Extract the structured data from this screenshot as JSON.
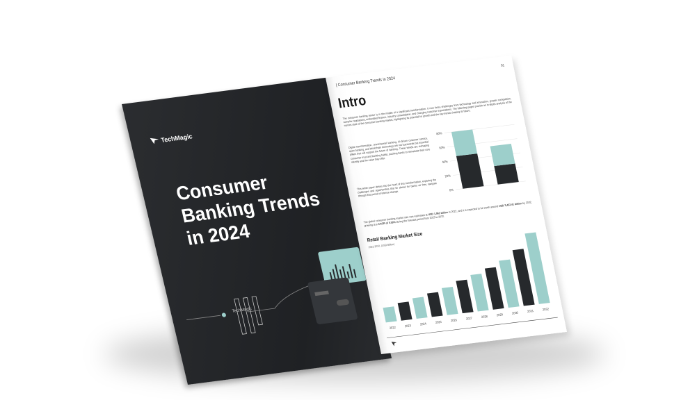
{
  "cover": {
    "brand": "TechMagic",
    "title": "Consumer Banking Trends in 2024",
    "footer_brand": "TechMagic"
  },
  "page": {
    "header": "| Consumer Banking Trends in 2024",
    "page_number": "01",
    "heading": "Intro",
    "paragraphs": [
      "The consumer banking sector is in the middle of a significant transformation. It now faces challenges from technology and innovation, greater competition, complex regulations, embedded finance, industry consolidation, and changing customer expectations. The following pages provide an in-depth analysis of the current state of the consumer banking market, highlighting its potential for growth and the key trends shaping its future.",
      "Digital transformation, omnichannel banking, AI-driven customer service, open banking, and blockchain technology are not buzzwords but essential pillars that will support the future of banking. These trends are reshaping consumer trust and banking habits, pushing banks to reevaluate their core identity and the value they offer.",
      "This white paper delves into the heart of this transformation, exploring the challenges and opportunities that lie ahead for banks as they navigate through this period of intense change."
    ],
    "market_text": [
      {
        "text": "The global consumer banking market size was estimated at ",
        "bold": false
      },
      {
        "text": "USD 1,963 billion",
        "bold": true
      },
      {
        "text": " in 2022, and it is expected to be worth around ",
        "bold": false
      },
      {
        "text": "USD 3,452.41 billion",
        "bold": true
      },
      {
        "text": " by 2032, growing at a ",
        "bold": false
      },
      {
        "text": "CAGR of 5.59%",
        "bold": true
      },
      {
        "text": " during the forecast period from 2023 to 2032.",
        "bold": false
      }
    ]
  },
  "chart_data": [
    {
      "type": "stacked-bar",
      "categories": [
        null,
        null
      ],
      "series": [
        {
          "color": "#26292c",
          "values": [
            46,
            26
          ]
        },
        {
          "color": "#9dcfcb",
          "values": [
            34,
            28
          ]
        }
      ],
      "ylim": [
        0,
        80
      ],
      "yticks": [
        {
          "value": 0,
          "label": "0%"
        },
        {
          "value": 20,
          "label": "20%"
        },
        {
          "value": 40,
          "label": "40%"
        },
        {
          "value": 60,
          "label": "60%"
        },
        {
          "value": 80,
          "label": "80%"
        }
      ]
    },
    {
      "type": "bar",
      "title": "Retail Banking Market Size",
      "subtitle": "2022-2032, (USD Billion)",
      "categories": [
        "2022",
        "2023",
        "2024",
        "2025",
        "2026",
        "2027",
        "2028",
        "2029",
        "2030",
        "2031",
        "2032"
      ],
      "values": [
        25,
        30,
        35,
        40,
        46,
        55,
        62,
        70,
        80,
        95,
        120
      ],
      "colors": [
        "#9dcfcb",
        "#26292c",
        "#9dcfcb",
        "#26292c",
        "#9dcfcb",
        "#26292c",
        "#9dcfcb",
        "#26292c",
        "#9dcfcb",
        "#26292c",
        "#9dcfcb"
      ],
      "ylim": [
        0,
        120
      ]
    }
  ]
}
